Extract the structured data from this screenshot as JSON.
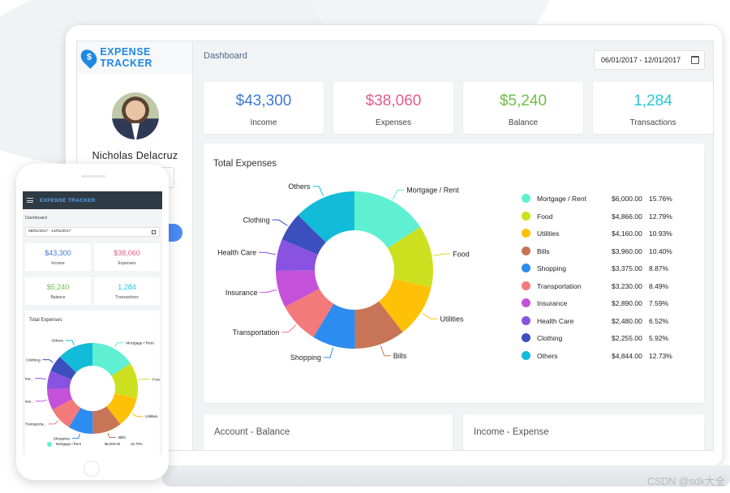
{
  "brand": {
    "name": "EXPENSE TRACKER",
    "logo_glyph": "$"
  },
  "user": {
    "name": "Nicholas Delacruz"
  },
  "breadcrumb": "Dashboard",
  "date_range": "06/01/2017 - 12/01/2017",
  "stats": [
    {
      "value": "$43,300",
      "label": "Income",
      "color": "#3d78d8"
    },
    {
      "value": "$38,060",
      "label": "Expenses",
      "color": "#e55b8a"
    },
    {
      "value": "$5,240",
      "label": "Balance",
      "color": "#6cc04a"
    },
    {
      "value": "1,284",
      "label": "Transactions",
      "color": "#26c6da"
    }
  ],
  "total_expenses": {
    "title": "Total Expenses",
    "items": [
      {
        "name": "Mortgage / Rent",
        "short": "Mortgage / Rent",
        "amount": "$6,000.00",
        "pct": "15.76%",
        "value": 6000,
        "color": "#5ff0d3"
      },
      {
        "name": "Food",
        "short": "Food",
        "amount": "$4,866.00",
        "pct": "12.79%",
        "value": 4866,
        "color": "#cde01f"
      },
      {
        "name": "Utilities",
        "short": "Utilities",
        "amount": "$4,160.00",
        "pct": "10.93%",
        "value": 4160,
        "color": "#ffc107"
      },
      {
        "name": "Bills",
        "short": "Bills",
        "amount": "$3,960.00",
        "pct": "10.40%",
        "value": 3960,
        "color": "#c87456"
      },
      {
        "name": "Shopping",
        "short": "Shopping",
        "amount": "$3,375.00",
        "pct": "8.87%",
        "value": 3375,
        "color": "#2d8cf0"
      },
      {
        "name": "Transportation",
        "short": "Transporta..",
        "amount": "$3,230.00",
        "pct": "8.49%",
        "value": 3230,
        "color": "#f27a7a"
      },
      {
        "name": "Insurance",
        "short": "Insu..",
        "amount": "$2,890.00",
        "pct": "7.59%",
        "value": 2890,
        "color": "#c452d8"
      },
      {
        "name": "Health Care",
        "short": "Hea..",
        "amount": "$2,480.00",
        "pct": "6.52%",
        "value": 2480,
        "color": "#8a52e0"
      },
      {
        "name": "Clothing",
        "short": "Clothing",
        "amount": "$2,255.00",
        "pct": "5.92%",
        "value": 2255,
        "color": "#3c4fbf"
      },
      {
        "name": "Others",
        "short": "Others",
        "amount": "$4,844.00",
        "pct": "12.73%",
        "value": 4844,
        "color": "#12bcd9"
      }
    ]
  },
  "chart_data": {
    "type": "pie",
    "title": "Total Expenses",
    "categories": [
      "Mortgage / Rent",
      "Food",
      "Utilities",
      "Bills",
      "Shopping",
      "Transportation",
      "Insurance",
      "Health Care",
      "Clothing",
      "Others"
    ],
    "values": [
      6000,
      4866,
      4160,
      3960,
      3375,
      3230,
      2890,
      2480,
      2255,
      4844
    ],
    "donut": true,
    "legend": "right"
  },
  "bottom_cards": [
    {
      "title": "Account - Balance"
    },
    {
      "title": "Income - Expense"
    }
  ],
  "phone": {
    "legend_first": {
      "name": "Mortgage / Rent",
      "amount": "$6,000.00",
      "pct": "15.76%"
    }
  },
  "watermark": "CSDN @sdk大全"
}
